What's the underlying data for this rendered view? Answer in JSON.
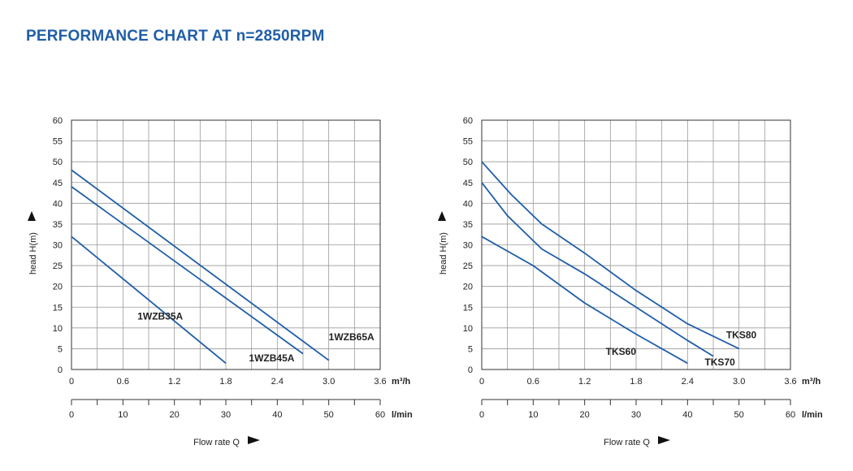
{
  "title": "PERFORMANCE CHART AT n=2850RPM",
  "colors": {
    "title": "#1f5ea8",
    "curve": "#1f5ea8",
    "grid": "#9a9a9a",
    "frame": "#333333"
  },
  "chart_data": [
    {
      "type": "line",
      "ylabel": "head H(m)",
      "xlabel": "Flow rate Q",
      "xunit": "m³/h",
      "x2unit": "l/min",
      "xlim": [
        0,
        3.6
      ],
      "ylim": [
        0,
        60
      ],
      "grid": true,
      "y_ticks": [
        "0",
        "5",
        "10",
        "15",
        "20",
        "25",
        "30",
        "35",
        "40",
        "45",
        "50",
        "55",
        "60"
      ],
      "x_ticks": [
        "0",
        "0.6",
        "1.2",
        "1.8",
        "2.4",
        "3.0",
        "3.6"
      ],
      "x2_ticks": [
        "0",
        "10",
        "20",
        "30",
        "40",
        "50",
        "60"
      ],
      "series": [
        {
          "name": "1WZB35A",
          "points": [
            [
              0,
              32
            ],
            [
              1.8,
              1.5
            ]
          ]
        },
        {
          "name": "1WZB45A",
          "points": [
            [
              0,
              44
            ],
            [
              2.7,
              3.8
            ]
          ]
        },
        {
          "name": "1WZB65A",
          "points": [
            [
              0,
              48
            ],
            [
              3.0,
              2.2
            ]
          ]
        }
      ]
    },
    {
      "type": "line",
      "ylabel": "head H(m)",
      "xlabel": "Flow rate Q",
      "xunit": "m³/h",
      "x2unit": "l/min",
      "xlim": [
        0,
        3.6
      ],
      "ylim": [
        0,
        60
      ],
      "grid": true,
      "y_ticks": [
        "0",
        "5",
        "10",
        "15",
        "20",
        "25",
        "30",
        "35",
        "40",
        "45",
        "50",
        "55",
        "60"
      ],
      "x_ticks": [
        "0",
        "0.6",
        "1.2",
        "1.8",
        "2.4",
        "3.0",
        "3.6"
      ],
      "x2_ticks": [
        "0",
        "10",
        "20",
        "30",
        "40",
        "50",
        "60"
      ],
      "series": [
        {
          "name": "TKS60",
          "points": [
            [
              0,
              32
            ],
            [
              0.6,
              25
            ],
            [
              1.2,
              16
            ],
            [
              1.8,
              8.5
            ],
            [
              2.4,
              1.5
            ]
          ]
        },
        {
          "name": "TKS70",
          "points": [
            [
              0,
              45
            ],
            [
              0.3,
              37
            ],
            [
              0.7,
              29
            ],
            [
              1.2,
              23
            ],
            [
              1.8,
              15
            ],
            [
              2.4,
              7
            ],
            [
              2.7,
              3.2
            ]
          ]
        },
        {
          "name": "TKS80",
          "points": [
            [
              0,
              50
            ],
            [
              0.35,
              42
            ],
            [
              0.7,
              35
            ],
            [
              1.2,
              28
            ],
            [
              1.8,
              19
            ],
            [
              2.4,
              11
            ],
            [
              3.0,
              5
            ]
          ]
        }
      ]
    }
  ]
}
